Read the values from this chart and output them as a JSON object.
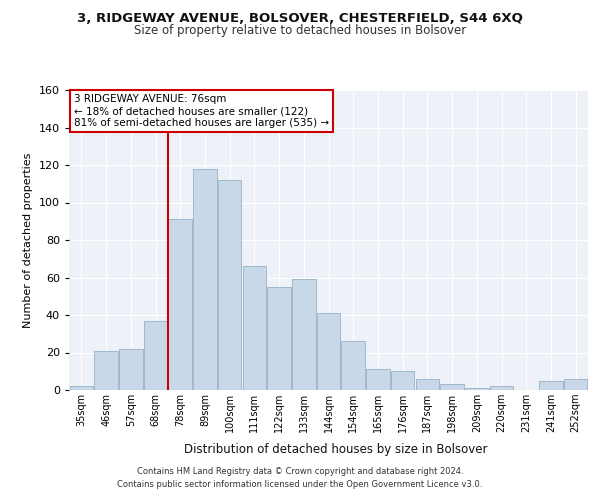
{
  "title1": "3, RIDGEWAY AVENUE, BOLSOVER, CHESTERFIELD, S44 6XQ",
  "title2": "Size of property relative to detached houses in Bolsover",
  "xlabel": "Distribution of detached houses by size in Bolsover",
  "ylabel": "Number of detached properties",
  "categories": [
    "35sqm",
    "46sqm",
    "57sqm",
    "68sqm",
    "78sqm",
    "89sqm",
    "100sqm",
    "111sqm",
    "122sqm",
    "133sqm",
    "144sqm",
    "154sqm",
    "165sqm",
    "176sqm",
    "187sqm",
    "198sqm",
    "209sqm",
    "220sqm",
    "231sqm",
    "241sqm",
    "252sqm"
  ],
  "values": [
    2,
    21,
    22,
    37,
    91,
    118,
    112,
    66,
    55,
    59,
    41,
    26,
    11,
    10,
    6,
    3,
    1,
    2,
    0,
    5,
    6
  ],
  "bar_color": "#c8d8e8",
  "bar_edge_color": "#a0b8cc",
  "vline_x_index": 4,
  "vline_color": "#cc0000",
  "annotation_text": "3 RIDGEWAY AVENUE: 76sqm\n← 18% of detached houses are smaller (122)\n81% of semi-detached houses are larger (535) →",
  "annotation_box_color": "#ffffff",
  "annotation_box_edge": "#cc0000",
  "ylim": [
    0,
    160
  ],
  "yticks": [
    0,
    20,
    40,
    60,
    80,
    100,
    120,
    140,
    160
  ],
  "background_color": "#eef2f8",
  "grid_color": "#ffffff",
  "footer1": "Contains HM Land Registry data © Crown copyright and database right 2024.",
  "footer2": "Contains public sector information licensed under the Open Government Licence v3.0."
}
